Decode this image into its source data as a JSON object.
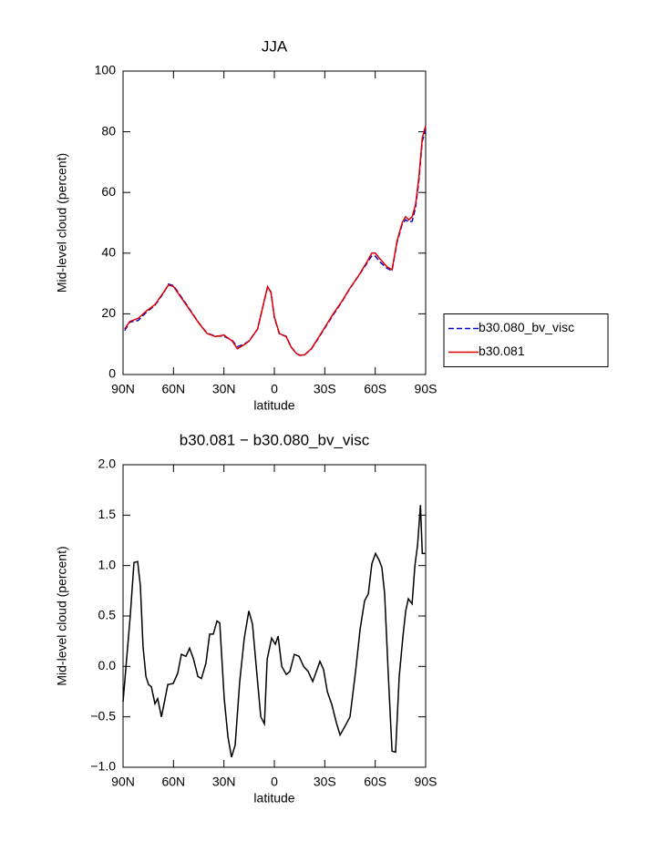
{
  "chart_data": [
    {
      "type": "line",
      "title": "JJA",
      "xlabel": "latitude",
      "ylabel": "Mid-level cloud (percent)",
      "x": [
        89,
        86,
        81,
        76,
        71,
        66,
        63,
        60,
        55,
        50,
        45,
        40,
        35,
        30,
        25,
        22,
        18,
        15,
        10,
        7,
        4,
        2,
        0,
        -3,
        -7,
        -10,
        -13,
        -15,
        -18,
        -22,
        -26,
        -30,
        -35,
        -40,
        -45,
        -50,
        -55,
        -58,
        -60,
        -63,
        -67,
        -70,
        -73,
        -76,
        -78,
        -80,
        -82,
        -84,
        -86,
        -88,
        -90
      ],
      "series": [
        {
          "name": "b30.080_bv_visc",
          "color": "#0000cc",
          "style": "dashed",
          "values": [
            14.5,
            17.3,
            17.8,
            20.6,
            22.8,
            26.8,
            29.8,
            29.3,
            25.3,
            21.2,
            17.1,
            13.6,
            12.7,
            12.6,
            11.2,
            9.2,
            10,
            11.1,
            15,
            22,
            28.8,
            27.2,
            18.8,
            13.4,
            12.6,
            9.1,
            7,
            6.4,
            6.5,
            8.4,
            11.8,
            15.3,
            19.7,
            23.8,
            28.4,
            32.4,
            36.6,
            39.2,
            39,
            37,
            35,
            34.2,
            43.5,
            49.5,
            51,
            50.2,
            50.5,
            55,
            64,
            77,
            80.5
          ]
        },
        {
          "name": "b30.081",
          "color": "#e00000",
          "style": "solid",
          "values": [
            15,
            17.5,
            18.5,
            21,
            23,
            27,
            29.5,
            29,
            25,
            21,
            17,
            13.5,
            12.5,
            13,
            11,
            8.5,
            9.8,
            11,
            15,
            22,
            29,
            27,
            19,
            13.5,
            12.5,
            9,
            7,
            6.3,
            6.5,
            8.5,
            12,
            15.5,
            20,
            24,
            28.5,
            32.5,
            37,
            40,
            40,
            38,
            35.5,
            34.5,
            44,
            50,
            52,
            51,
            52,
            56,
            65,
            78,
            82
          ]
        }
      ],
      "xlim": [
        90,
        -90
      ],
      "xticks": [
        {
          "value": 90,
          "label": "90N"
        },
        {
          "value": 60,
          "label": "60N"
        },
        {
          "value": 30,
          "label": "30N"
        },
        0,
        {
          "value": -30,
          "label": "30S"
        },
        {
          "value": -60,
          "label": "60S"
        },
        {
          "value": -90,
          "label": "90S"
        }
      ],
      "ylim": [
        0,
        100
      ],
      "yticks": [
        0,
        20,
        40,
        60,
        80,
        100
      ],
      "legend": "right"
    },
    {
      "type": "line",
      "title": "b30.081 − b30.080_bv_visc",
      "xlabel": "latitude",
      "ylabel": "Mid-level cloud (percent)",
      "x": [
        90,
        85.7,
        83.5,
        81.3,
        79.7,
        78.1,
        76.4,
        74.8,
        73.2,
        71.0,
        69.4,
        67.2,
        65.6,
        63.4,
        60.2,
        57.5,
        55.3,
        52.6,
        50.4,
        48.2,
        45.5,
        43.4,
        40.7,
        38.5,
        36.3,
        34.1,
        32.5,
        29.8,
        27.6,
        25.5,
        23.3,
        20.6,
        17.9,
        15.2,
        13.0,
        10.8,
        8.1,
        5.9,
        4.3,
        1.6,
        -0.6,
        -2.2,
        -4.4,
        -7.1,
        -9.2,
        -11.9,
        -14.7,
        -17.4,
        -20.1,
        -22.8,
        -25.0,
        -27.1,
        -29.3,
        -31.5,
        -34.2,
        -36.9,
        -39.1,
        -41.8,
        -45.0,
        -48.3,
        -51.0,
        -53.7,
        -55.9,
        -58.0,
        -60.2,
        -62.4,
        -64.0,
        -65.6,
        -67.8,
        -70.0,
        -72.1,
        -74.3,
        -76.5,
        -78.1,
        -79.7,
        -81.9,
        -83.6,
        -85.2,
        -86.9,
        -88.0,
        -89.6
      ],
      "series": [
        {
          "color": "#000000",
          "style": "solid",
          "values": [
            -0.35,
            0.5,
            1.03,
            1.04,
            0.8,
            0.2,
            -0.1,
            -0.18,
            -0.2,
            -0.37,
            -0.32,
            -0.5,
            -0.37,
            -0.18,
            -0.17,
            -0.07,
            0.12,
            0.1,
            0.18,
            0.08,
            -0.1,
            -0.12,
            0.03,
            0.32,
            0.32,
            0.45,
            0.43,
            -0.32,
            -0.7,
            -0.9,
            -0.78,
            -0.15,
            0.28,
            0.55,
            0.42,
            0,
            -0.5,
            -0.57,
            0.07,
            0.28,
            0.22,
            0.3,
            0,
            -0.08,
            -0.05,
            0.12,
            0.1,
            0,
            -0.05,
            -0.15,
            -0.05,
            0.05,
            -0.03,
            -0.25,
            -0.38,
            -0.56,
            -0.68,
            -0.6,
            -0.5,
            -0.05,
            0.37,
            0.65,
            0.72,
            1.02,
            1.12,
            1.05,
            0.98,
            0.72,
            -0.1,
            -0.84,
            -0.85,
            -0.1,
            0.3,
            0.55,
            0.67,
            0.62,
            1.0,
            1.2,
            1.6,
            1.12,
            1.12
          ]
        }
      ],
      "xlim": [
        90,
        -90
      ],
      "xticks": [
        {
          "value": 90,
          "label": "90N"
        },
        {
          "value": 60,
          "label": "60N"
        },
        {
          "value": 30,
          "label": "30N"
        },
        0,
        {
          "value": -30,
          "label": "30S"
        },
        {
          "value": -60,
          "label": "60S"
        },
        {
          "value": -90,
          "label": "90S"
        }
      ],
      "ylim": [
        -1,
        2
      ],
      "yticks": [
        {
          "value": -1,
          "label": "−1.0"
        },
        {
          "value": -0.5,
          "label": "−0.5"
        },
        {
          "value": 0,
          "label": "0.0"
        },
        0.5,
        {
          "value": 1,
          "label": "1.0"
        },
        1.5,
        {
          "value": 2,
          "label": "2.0"
        }
      ]
    }
  ]
}
